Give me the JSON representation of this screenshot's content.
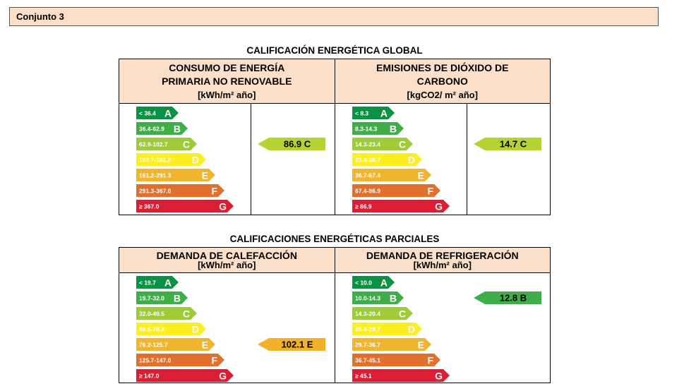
{
  "header": {
    "title": "Conjunto 3"
  },
  "colors": [
    "#0a9245",
    "#3fae49",
    "#9fcb3a",
    "#fcee21",
    "#f0b42d",
    "#e2702a",
    "#dc1e34"
  ],
  "arrow_colors": {
    "C": "#b4d332",
    "E": "#f2b128",
    "B": "#3fae49"
  },
  "global": {
    "title": "CALIFICACIÓN ENERGÉTICA GLOBAL",
    "left": {
      "heading_lines": [
        "CONSUMO DE ENERGÍA",
        "PRIMARIA NO RENOVABLE",
        "[kWh/m² año]"
      ],
      "ranges": [
        "< 36.4",
        "36.4-62.9",
        "62.9-102.7",
        "102.7-161.2",
        "161.2-291.3",
        "291.3-367.0",
        "≥ 367.0"
      ],
      "rating": {
        "value": "86.9",
        "letter": "C",
        "label": "86.9 C"
      }
    },
    "right": {
      "heading_lines": [
        "EMISIONES DE DIÓXIDO DE",
        "CARBONO",
        "[kgCO2/ m² año]"
      ],
      "ranges": [
        "< 8.3",
        "8.3-14.3",
        "14.3-23.4",
        "23.4-36.7",
        "36.7-67.4",
        "67.4-86.9",
        "≥ 86.9"
      ],
      "rating": {
        "value": "14.7",
        "letter": "C",
        "label": "14.7 C"
      }
    }
  },
  "partial": {
    "title": "CALIFICACIONES ENERGÉTICAS PARCIALES",
    "left": {
      "heading_lines": [
        "DEMANDA DE CALEFACCIÓN",
        "[kWh/m² año]"
      ],
      "ranges": [
        "< 19.7",
        "19.7-32.0",
        "32.0-49.5",
        "49.5-76.2",
        "76.2-125.7",
        "125.7-147.0",
        "≥ 147.0"
      ],
      "rating": {
        "value": "102.1",
        "letter": "E",
        "label": "102.1 E"
      }
    },
    "right": {
      "heading_lines": [
        "DEMANDA DE REFRIGERACIÓN",
        "[kWh/m² año]"
      ],
      "ranges": [
        "< 10.0",
        "10.0-14.3",
        "14.3-20.4",
        "20.4-29.7",
        "29.7-36.7",
        "36.7-45.1",
        "≥ 45.1"
      ],
      "rating": {
        "value": "12.8",
        "letter": "B",
        "label": "12.8 B"
      }
    }
  },
  "letters": [
    "A",
    "B",
    "C",
    "D",
    "E",
    "F",
    "G"
  ]
}
